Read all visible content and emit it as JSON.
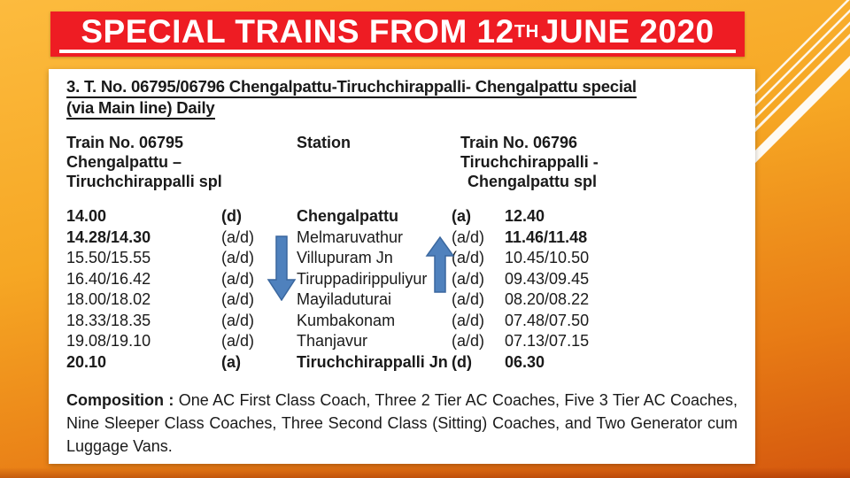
{
  "colors": {
    "background_top": "#fcbb3e",
    "background_bottom": "#d4570e",
    "banner_red": "#ee1c23",
    "arrow_blue": "#4f81bd",
    "text": "#1a1a1a",
    "white": "#ffffff"
  },
  "title": {
    "main": "SPECIAL TRAINS FROM 12",
    "superscript": "TH",
    "tail": " JUNE 2020"
  },
  "section": {
    "heading_line1": "3. T. No. 06795/06796 Chengalpattu-Tiruchchirappalli- Chengalpattu special",
    "heading_line2": "(via Main line) Daily"
  },
  "table": {
    "header": {
      "left": [
        "Train No. 06795",
        "Chengalpattu –",
        "Tiruchchirappalli spl"
      ],
      "center": "Station",
      "right": [
        "Train No. 06796",
        "Tiruchchirappalli -",
        "Chengalpattu spl"
      ]
    },
    "rows": [
      {
        "t1": "14.00",
        "m1": "(d)",
        "station": "Chengalpattu",
        "m2": "(a)",
        "t2": "12.40",
        "bold": "all"
      },
      {
        "t1": "14.28/14.30",
        "m1": "(a/d)",
        "station": "Melmaruvathur",
        "m2": "(a/d)",
        "t2": "11.46/11.48",
        "bold": "times"
      },
      {
        "t1": "15.50/15.55",
        "m1": "(a/d)",
        "station": "Villupuram Jn",
        "m2": "(a/d)",
        "t2": "10.45/10.50",
        "bold": "none"
      },
      {
        "t1": "16.40/16.42",
        "m1": "(a/d)",
        "station": "Tiruppadirippuliyur",
        "m2": "(a/d)",
        "t2": "09.43/09.45",
        "bold": "none"
      },
      {
        "t1": "18.00/18.02",
        "m1": "(a/d)",
        "station": "Mayiladuturai",
        "m2": "(a/d)",
        "t2": "08.20/08.22",
        "bold": "none"
      },
      {
        "t1": "18.33/18.35",
        "m1": "(a/d)",
        "station": "Kumbakonam",
        "m2": "(a/d)",
        "t2": "07.48/07.50",
        "bold": "none"
      },
      {
        "t1": "19.08/19.10",
        "m1": "(a/d)",
        "station": "Thanjavur",
        "m2": "(a/d)",
        "t2": "07.13/07.15",
        "bold": "none"
      },
      {
        "t1": "20.10",
        "m1": "(a)",
        "station": "Tiruchchirappalli Jn",
        "m2": "(d)",
        "t2": "06.30",
        "bold": "all"
      }
    ]
  },
  "icons": {
    "left_direction": "down-arrow-icon",
    "right_direction": "up-arrow-icon",
    "corner_decoration": "diagonal-stripes"
  },
  "composition": {
    "label": "Composition :",
    "text": "One AC First Class Coach, Three 2 Tier AC Coaches, Five 3 Tier AC Coaches, Nine Sleeper Class Coaches, Three Second Class (Sitting) Coaches, and Two Generator cum Luggage Vans."
  }
}
